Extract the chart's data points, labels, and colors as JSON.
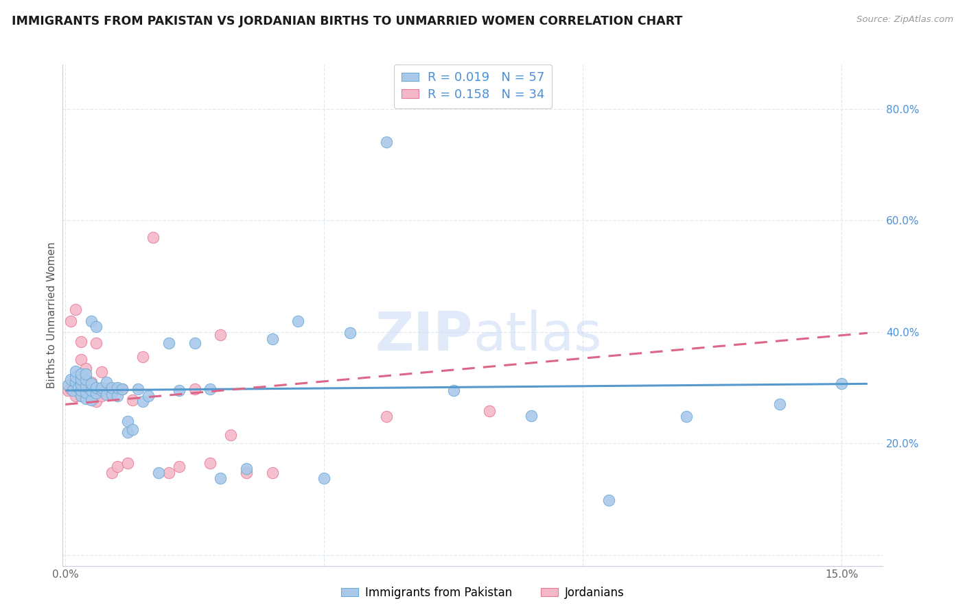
{
  "title": "IMMIGRANTS FROM PAKISTAN VS JORDANIAN BIRTHS TO UNMARRIED WOMEN CORRELATION CHART",
  "source": "Source: ZipAtlas.com",
  "ylabel": "Births to Unmarried Women",
  "xlim": [
    -0.0005,
    0.158
  ],
  "ylim": [
    -0.02,
    0.88
  ],
  "blue_color": "#aac9ea",
  "pink_color": "#f4b8c8",
  "blue_edge_color": "#6aaad4",
  "pink_edge_color": "#e8789a",
  "blue_line_color": "#5599cc",
  "pink_line_color": "#dd6688",
  "watermark_color": "#c8daf5",
  "right_axis_color": "#4a90d9",
  "grid_color": "#e0e8f0",
  "title_fontsize": 12.5,
  "legend_r1": "R = 0.019",
  "legend_n1": "N = 57",
  "legend_r2": "R = 0.158",
  "legend_n2": "N = 34",
  "blue_scatter_x": [
    0.0005,
    0.001,
    0.0015,
    0.002,
    0.002,
    0.002,
    0.0025,
    0.003,
    0.003,
    0.003,
    0.003,
    0.003,
    0.004,
    0.004,
    0.004,
    0.004,
    0.004,
    0.005,
    0.005,
    0.005,
    0.005,
    0.006,
    0.006,
    0.006,
    0.007,
    0.007,
    0.008,
    0.008,
    0.009,
    0.009,
    0.01,
    0.01,
    0.011,
    0.012,
    0.012,
    0.013,
    0.014,
    0.015,
    0.016,
    0.018,
    0.02,
    0.022,
    0.025,
    0.028,
    0.03,
    0.035,
    0.04,
    0.045,
    0.05,
    0.055,
    0.062,
    0.075,
    0.09,
    0.105,
    0.12,
    0.138,
    0.15
  ],
  "blue_scatter_y": [
    0.305,
    0.315,
    0.295,
    0.31,
    0.32,
    0.33,
    0.3,
    0.285,
    0.295,
    0.305,
    0.315,
    0.325,
    0.28,
    0.292,
    0.303,
    0.315,
    0.325,
    0.278,
    0.295,
    0.308,
    0.42,
    0.29,
    0.3,
    0.41,
    0.295,
    0.3,
    0.288,
    0.31,
    0.288,
    0.3,
    0.285,
    0.3,
    0.298,
    0.22,
    0.24,
    0.225,
    0.298,
    0.275,
    0.285,
    0.148,
    0.38,
    0.295,
    0.38,
    0.298,
    0.138,
    0.155,
    0.388,
    0.42,
    0.138,
    0.398,
    0.74,
    0.295,
    0.25,
    0.098,
    0.248,
    0.27,
    0.308
  ],
  "pink_scatter_x": [
    0.0005,
    0.001,
    0.001,
    0.002,
    0.002,
    0.003,
    0.003,
    0.003,
    0.004,
    0.004,
    0.005,
    0.005,
    0.006,
    0.006,
    0.007,
    0.007,
    0.008,
    0.009,
    0.01,
    0.011,
    0.012,
    0.013,
    0.015,
    0.017,
    0.02,
    0.022,
    0.025,
    0.028,
    0.03,
    0.032,
    0.035,
    0.04,
    0.062,
    0.082
  ],
  "pink_scatter_y": [
    0.295,
    0.298,
    0.42,
    0.285,
    0.44,
    0.285,
    0.35,
    0.382,
    0.335,
    0.295,
    0.285,
    0.31,
    0.275,
    0.38,
    0.285,
    0.328,
    0.298,
    0.148,
    0.158,
    0.298,
    0.165,
    0.278,
    0.355,
    0.57,
    0.148,
    0.158,
    0.298,
    0.165,
    0.395,
    0.215,
    0.148,
    0.148,
    0.248,
    0.258
  ],
  "blue_trend_x": [
    0.0,
    0.155
  ],
  "blue_trend_y": [
    0.295,
    0.307
  ],
  "pink_trend_x": [
    0.0,
    0.155
  ],
  "pink_trend_y": [
    0.27,
    0.398
  ],
  "x_tick_positions": [
    0.0,
    0.05,
    0.1,
    0.15
  ],
  "x_tick_labels": [
    "0.0%",
    "",
    "",
    "15.0%"
  ],
  "y_tick_positions": [
    0.0,
    0.2,
    0.4,
    0.6,
    0.8
  ],
  "y_tick_labels_right": [
    "",
    "20.0%",
    "40.0%",
    "60.0%",
    "80.0%"
  ]
}
